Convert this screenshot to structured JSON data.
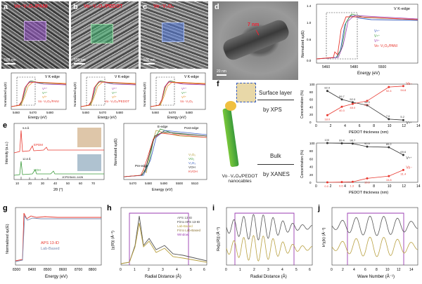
{
  "labels": {
    "a": "a",
    "b": "b",
    "c": "c",
    "d": "d",
    "e": "e",
    "f": "f",
    "g": "g",
    "h": "h",
    "i": "i",
    "j": "j"
  },
  "sem": {
    "a_title": "Vo··V₂O₅/PANI",
    "b_title": "Vo··V₂O₅/PEDOT",
    "c_title": "Vo··V₂O₅",
    "a_scale": "500 nm",
    "b_scale": "500 nm",
    "c_scale": "500 nm",
    "d_scale": "20 nm",
    "d_meas": "7 nm"
  },
  "xanes_small": {
    "edge": "V K-edge",
    "xlabel": "Energy (eV)",
    "ylabel": "Normalized xμ(E)",
    "ticks": [
      "5460",
      "5470",
      "5480"
    ],
    "legend_a": [
      "V⁵⁺",
      "V⁴⁺",
      "V³⁺",
      "Vo··V₂O₅/PANI"
    ],
    "legend_b": [
      "V⁵⁺",
      "V⁴⁺",
      "V³⁺",
      "Vo··V₂O₅/PEDOT"
    ],
    "legend_c": [
      "V⁵⁺",
      "V⁴⁺",
      "V³⁺",
      "Vo··V₂O₅"
    ]
  },
  "d_chart": {
    "edge": "V K-edge",
    "xlabel": "Energy (eV)",
    "ylabel": "Normalized xμ(E)",
    "xticks": [
      "5460",
      "5480",
      "5500"
    ],
    "yticks": [
      "0.0",
      "0.2",
      "0.4",
      "0.6",
      "0.8",
      "1.0",
      "1.2",
      "1.4"
    ],
    "legend": [
      "V⁵⁺",
      "V⁴⁺",
      "V³⁺",
      "Vo··V₂O₅/PANI"
    ]
  },
  "e_chart": {
    "xlabel": "2θ (°)",
    "ylabel": "Intensity (a.u.)",
    "xticks": [
      "10",
      "20",
      "30",
      "40",
      "50",
      "60",
      "70"
    ],
    "label_top": "EPDM",
    "label_bot": "VOH",
    "ref": "JCPDS#41-1426",
    "ann_top": "9.8 Å",
    "ann_bot": "12.8 Å"
  },
  "e2_chart": {
    "xlabel": "Energy (eV)",
    "ylabel": "Normalized xμ(E)",
    "xticks": [
      "5470",
      "5480",
      "5490",
      "5500",
      "5510"
    ],
    "ann_pre": "Pre-edge",
    "ann_e": "E-edge",
    "ann_post": "Post-edge",
    "legend": [
      "V₂O₅",
      "VO₂",
      "V₂O₃",
      "VOH",
      "KVOH"
    ]
  },
  "f_panel": {
    "label": "f",
    "surface": "Surface layer",
    "by_xps": "by XPS",
    "bulk": "Bulk",
    "by_xanes": "by XANES",
    "nanocables": "Vo··V₂O₅/PEDOT nanocables"
  },
  "f_top": {
    "xlabel": "PEDOT thickness (nm)",
    "ylabel": "Concentration (%)",
    "xticks": [
      "0",
      "2",
      "4",
      "6",
      "8",
      "10",
      "12",
      "14"
    ],
    "yticks": [
      "0",
      "20",
      "40",
      "60",
      "80",
      "100"
    ],
    "series": [
      {
        "name": "V⁴⁺",
        "x": [
          1.5,
          3.5,
          5,
          7,
          10,
          12
        ],
        "y": [
          82.0,
          59.7,
          52.0,
          44.3,
          7.6,
          5.2
        ],
        "labels": [
          "82.0",
          "59.7",
          "52.0",
          "44.3",
          "7.6",
          "5.2"
        ]
      },
      {
        "name": "Vo··",
        "x": [
          1.5,
          3.5,
          5,
          7,
          10,
          12
        ],
        "y": [
          18.0,
          40.3,
          48.0,
          55.7,
          92.4,
          94.8
        ],
        "labels": [
          "18.0",
          "40.3",
          "48.0",
          "55.7",
          "92.4",
          "94.8"
        ]
      }
    ]
  },
  "f_bot": {
    "xlabel": "PEDOT thickness (nm)",
    "ylabel": "Concentration (%)",
    "xticks": [
      "0",
      "2",
      "4",
      "6",
      "8",
      "10",
      "12",
      "14"
    ],
    "yticks": [
      "0",
      "20",
      "40",
      "60",
      "80",
      "100"
    ],
    "series": [
      {
        "name": "V⁵⁺",
        "x": [
          1.5,
          3.5,
          5,
          7,
          10,
          12
        ],
        "y": [
          100,
          99.4,
          98.7,
          90.9,
          89.2,
          69.6
        ],
        "labels": [
          "100",
          "99.4",
          "98.7",
          "90.9",
          "89.2",
          "69.6"
        ]
      },
      {
        "name": "Vo··",
        "x": [
          1.5,
          3.5,
          5,
          7,
          10,
          12
        ],
        "y": [
          0.0,
          0.6,
          1.3,
          10.0,
          15.8,
          31.4
        ],
        "labels": [
          "0.0",
          "0.6",
          "1.3",
          "10.0",
          "15.8",
          "31.4"
        ]
      }
    ]
  },
  "g_chart": {
    "xlabel": "Energy (eV)",
    "ylabel": "Normalized xμ(E)",
    "xticks": [
      "8300",
      "8400",
      "8500",
      "8600",
      "8700",
      "8800"
    ],
    "legend": [
      "APS 13-ID",
      "Lab-Based"
    ]
  },
  "h_chart": {
    "xlabel": "Radial Distance (Å)",
    "ylabel": "|χ(R)| (Å⁻³)",
    "xticks": [
      "0",
      "1",
      "2",
      "3",
      "4",
      "5",
      "6"
    ],
    "legend": [
      "APS 13-ID",
      "Fit to APS 13-ID",
      "Lab-Based",
      "Fit to Lab-Based",
      "Window"
    ]
  },
  "i_chart": {
    "xlabel": "Radial Distance (Å)",
    "ylabel": "Re[χ(R)] (Å⁻³)",
    "xticks": [
      "0",
      "1",
      "2",
      "3",
      "4",
      "5",
      "6"
    ]
  },
  "j_chart": {
    "xlabel": "Wave Number (Å⁻¹)",
    "ylabel": "k²χ(k) (Å⁻²)",
    "xticks": [
      "0",
      "2",
      "4",
      "6",
      "8",
      "10",
      "12",
      "14"
    ]
  },
  "colors": {
    "red": "#e8382f",
    "green": "#3a9a3a",
    "blue": "#3a5fc0",
    "purple": "#9a3ab0",
    "gold": "#b8a040",
    "orange": "#e88a1a"
  }
}
